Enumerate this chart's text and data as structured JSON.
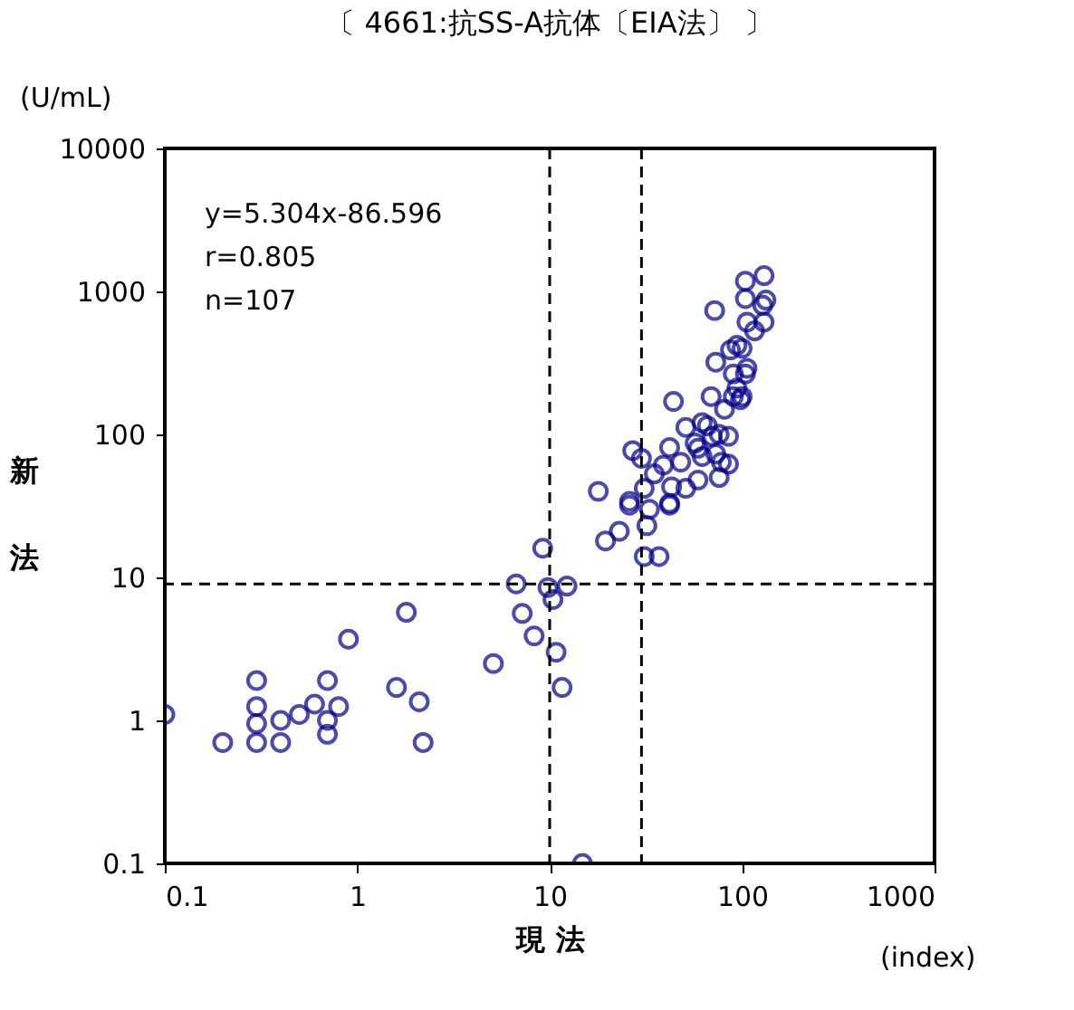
{
  "chart_data": {
    "type": "scatter",
    "title": "〔 4661:抗SS-A抗体〔EIA法〕 〕",
    "xlabel": "現 法",
    "ylabel": "新法",
    "annotations": [
      "y=5.304x-86.596",
      "r=0.805",
      "n=107",
      "(U/mL)",
      "(index)"
    ],
    "log": "xy",
    "grid": false,
    "marker": "circle",
    "xlim": [
      0.1,
      1000
    ],
    "xticks": [
      0.1,
      1,
      10,
      100,
      1000
    ],
    "ylim": [
      0.1,
      10000
    ],
    "yticks": [
      0.1,
      1,
      10,
      100,
      1000,
      10000
    ],
    "ref_lines": [
      {
        "axis": "x",
        "value": 10,
        "line_style": "dashed",
        "color": "#000000"
      },
      {
        "axis": "x",
        "value": 30,
        "line_style": "dashed",
        "color": "#000000"
      },
      {
        "axis": "y",
        "value": 9,
        "line_style": "dashed",
        "color": "#000000"
      }
    ],
    "series": [
      {
        "color": "#00008b",
        "x": [
          0.1,
          0.2,
          0.3,
          0.3,
          0.3,
          0.3,
          0.4,
          0.4,
          0.5,
          0.6,
          0.7,
          0.7,
          0.7,
          0.8,
          0.9,
          1.6,
          1.8,
          2.1,
          2.2,
          5.1,
          6.7,
          7.2,
          8.3,
          9.2,
          9.8,
          10.4,
          12.3,
          10.8,
          11.6,
          14.8,
          17.9,
          19.5,
          23,
          26,
          27,
          30,
          31,
          32,
          31,
          37,
          33,
          35,
          39,
          42,
          42,
          43,
          44,
          48,
          51,
          51,
          57,
          59,
          59,
          62,
          62,
          66,
          70,
          72,
          73,
          73,
          76,
          76,
          78,
          81,
          85,
          85,
          87,
          90,
          90,
          94,
          94,
          98,
          100,
          100,
          104,
          104,
          104,
          106,
          106,
          116,
          128,
          130,
          130,
          133,
          69,
          42,
          26
        ],
        "values": [
          1.1,
          0.7,
          1.9,
          1.25,
          0.95,
          0.7,
          1.0,
          0.7,
          1.1,
          1.3,
          1.9,
          1.0,
          0.8,
          1.25,
          3.7,
          1.7,
          5.7,
          1.35,
          0.7,
          2.5,
          9.0,
          5.6,
          3.9,
          16,
          8.5,
          7.0,
          8.7,
          3.0,
          1.7,
          0.1,
          40,
          18,
          21,
          32,
          77,
          68,
          42,
          23,
          14,
          14,
          30,
          53,
          61,
          32,
          81,
          43,
          170,
          64,
          42,
          112,
          87,
          48,
          80,
          121,
          70,
          115,
          97,
          735,
          73,
          320,
          50,
          100,
          64,
          150,
          97,
          62,
          390,
          265,
          184,
          420,
          211,
          175,
          400,
          184,
          265,
          1180,
          890,
          290,
          610,
          530,
          800,
          1290,
          610,
          870,
          184,
          33,
          34
        ]
      }
    ]
  }
}
